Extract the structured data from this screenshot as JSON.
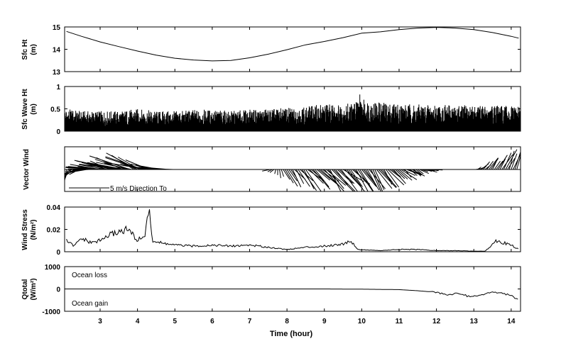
{
  "chart_data": [
    {
      "id": "sfc_ht",
      "type": "line",
      "ylabel": [
        "Sfc Ht",
        "(m)"
      ],
      "ylim": [
        13,
        15
      ],
      "yticks": [
        13,
        14,
        15
      ],
      "x": [
        2.1,
        2.5,
        3,
        3.5,
        4,
        4.5,
        5,
        5.5,
        6,
        6.5,
        7,
        7.5,
        8,
        8.5,
        9,
        9.5,
        10,
        10.5,
        11,
        11.5,
        12,
        12.5,
        13,
        13.5,
        14,
        14.2
      ],
      "values": [
        14.8,
        14.58,
        14.33,
        14.12,
        13.92,
        13.74,
        13.6,
        13.52,
        13.48,
        13.5,
        13.62,
        13.78,
        13.98,
        14.2,
        14.35,
        14.52,
        14.72,
        14.78,
        14.88,
        14.95,
        14.98,
        14.95,
        14.88,
        14.75,
        14.58,
        14.5
      ],
      "annotations": []
    },
    {
      "id": "wave_ht",
      "type": "bar",
      "ylabel": [
        "Sfc Wave Ht",
        "(m)"
      ],
      "ylim": [
        0,
        1
      ],
      "yticks": [
        0,
        0.5,
        1
      ],
      "x": [
        2.1,
        2.5,
        3,
        3.5,
        4,
        4.5,
        5,
        5.5,
        6,
        6.5,
        7,
        7.5,
        8,
        8.5,
        9,
        9.5,
        10,
        10.5,
        11,
        11.5,
        12,
        12.5,
        13,
        13.5,
        14,
        14.2
      ],
      "envelope": [
        0.5,
        0.45,
        0.45,
        0.45,
        0.5,
        0.45,
        0.45,
        0.48,
        0.48,
        0.45,
        0.48,
        0.5,
        0.52,
        0.55,
        0.62,
        0.6,
        0.72,
        0.65,
        0.62,
        0.6,
        0.6,
        0.58,
        0.58,
        0.58,
        0.56,
        0.55
      ],
      "peak": {
        "x": 9.95,
        "value": 0.82
      },
      "annotations": []
    },
    {
      "id": "vector_wind",
      "type": "other",
      "ylabel": [
        "Vector Wind"
      ],
      "legend": "5 m/s  Direction To",
      "x": [
        2.1,
        2.5,
        3,
        3.5,
        4,
        4.5,
        5,
        5.5,
        6,
        6.5,
        7,
        7.5,
        8,
        8.5,
        9,
        9.5,
        10,
        10.5,
        11,
        11.5,
        12,
        12.5,
        13,
        13.5,
        14,
        14.2
      ],
      "u": [
        -1,
        -2,
        -3,
        -4,
        -4,
        -3,
        -2,
        -2,
        -2,
        -2,
        -2,
        -1,
        1,
        1.5,
        2,
        2,
        2,
        1.5,
        1.5,
        1,
        1,
        0.5,
        0.5,
        1,
        1,
        0.5
      ],
      "v": [
        -1,
        -0.5,
        0.5,
        1,
        1.5,
        0.5,
        0,
        0,
        0,
        0,
        0,
        0,
        -1.5,
        -2,
        -2,
        -2.5,
        -2.5,
        -2,
        -1,
        -0.5,
        0,
        0,
        0,
        1.5,
        2.5,
        2
      ],
      "annotations": []
    },
    {
      "id": "wind_stress",
      "type": "line",
      "ylabel": [
        "Wind Stress",
        "(N/m²)"
      ],
      "ylim": [
        0,
        0.04
      ],
      "yticks": [
        0,
        0.02,
        0.04
      ],
      "ytick_labels": [
        "0",
        "0.02",
        "0.04"
      ],
      "x": [
        2.1,
        2.3,
        2.5,
        2.75,
        3,
        3.25,
        3.5,
        3.75,
        4,
        4.2,
        4.3,
        4.4,
        4.6,
        5,
        5.5,
        6,
        6.5,
        7,
        7.5,
        8,
        8.5,
        9,
        9.5,
        9.7,
        9.9,
        10.5,
        11,
        11.5,
        12,
        12.5,
        13,
        13.3,
        13.6,
        13.8,
        14,
        14.2
      ],
      "values": [
        0.01,
        0.005,
        0.012,
        0.008,
        0.01,
        0.015,
        0.018,
        0.02,
        0.01,
        0.015,
        0.038,
        0.01,
        0.008,
        0.006,
        0.005,
        0.006,
        0.005,
        0.006,
        0.004,
        0.002,
        0.004,
        0.005,
        0.007,
        0.01,
        0.002,
        0.001,
        0.002,
        0.002,
        0.001,
        0.001,
        0.0005,
        0.0005,
        0.01,
        0.008,
        0.006,
        0.002
      ],
      "annotations": []
    },
    {
      "id": "q_total",
      "type": "line",
      "ylabel": [
        "Qtotal",
        "(W/m²)"
      ],
      "ylim": [
        -1000,
        1000
      ],
      "yticks": [
        -1000,
        0,
        1000
      ],
      "ytick_labels": [
        "-1000",
        "0",
        "1000"
      ],
      "x": [
        2.1,
        2.5,
        3,
        4,
        5,
        6,
        7,
        8,
        9,
        10,
        11,
        11.5,
        12,
        12.3,
        12.6,
        12.9,
        13.2,
        13.5,
        13.8,
        14,
        14.2
      ],
      "values": [
        0,
        0,
        0,
        0,
        0,
        0,
        0,
        0,
        0,
        -10,
        -30,
        -80,
        -150,
        -250,
        -200,
        -350,
        -250,
        -150,
        -200,
        -300,
        -520
      ],
      "annotations": [
        "Ocean loss",
        "Ocean gain"
      ]
    }
  ],
  "axes": {
    "xlim": [
      2.05,
      14.25
    ],
    "xticks": [
      3,
      4,
      5,
      6,
      7,
      8,
      9,
      10,
      11,
      12,
      13,
      14
    ],
    "xlabel": "Time (hour)"
  }
}
